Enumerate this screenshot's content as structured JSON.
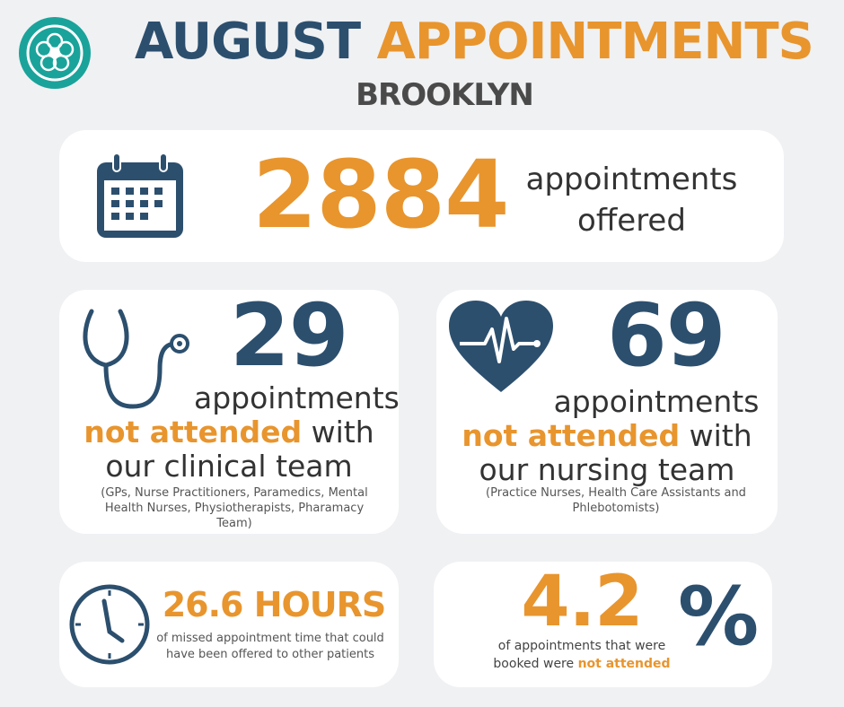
{
  "header": {
    "title_left": "AUGUST",
    "title_right": "APPOINTMENTS",
    "subtitle": "BROOKLYN"
  },
  "offered": {
    "number": "2884",
    "label_line1": "appointments",
    "label_line2": "offered"
  },
  "clinical": {
    "number": "29",
    "line1": "appointments",
    "highlight": "not attended",
    "line2_rest": "with",
    "line3": "our clinical team",
    "note": "(GPs, Nurse Practitioners, Paramedics, Mental Health Nurses, Physiotherapists, Pharamacy Team)"
  },
  "nursing": {
    "number": "69",
    "line1": "appointments",
    "highlight": "not attended",
    "line2_rest": "with",
    "line3": "our nursing team",
    "note": "(Practice Nurses, Health Care Assistants and Phlebotomists)"
  },
  "hours": {
    "value": "26.6 HOURS",
    "description": "of missed appointment time that could have been offered to other patients"
  },
  "percent": {
    "value": "4.2",
    "symbol": "%",
    "desc_line1": "of appointments that were",
    "desc_line2": "booked were",
    "highlight": "not attended"
  }
}
